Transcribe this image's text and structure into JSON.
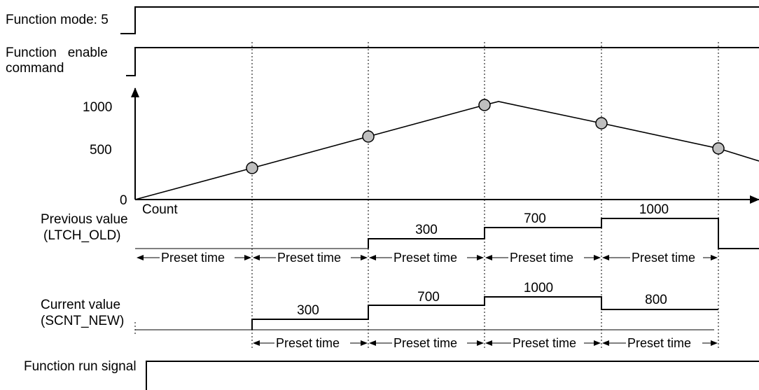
{
  "signals": {
    "function_mode": "Function mode: 5",
    "enable_line1": "Function   enable",
    "enable_line2": "command",
    "run_signal": "Function run signal"
  },
  "chart": {
    "y_ticks": [
      "1000",
      "500",
      "0"
    ],
    "x_label": "Count",
    "points": [
      {
        "count": 300
      },
      {
        "count": 700
      },
      {
        "count": 1000
      },
      {
        "count": 800
      },
      {
        "count": 500
      }
    ]
  },
  "previous": {
    "label1": "Previous value",
    "label2": "(LTCH_OLD)",
    "values": [
      "300",
      "700",
      "1000"
    ]
  },
  "current": {
    "label1": "Current value",
    "label2": "(SCNT_NEW)",
    "values": [
      "300",
      "700",
      "1000",
      "800"
    ]
  },
  "preset": {
    "label": "Preset time"
  }
}
